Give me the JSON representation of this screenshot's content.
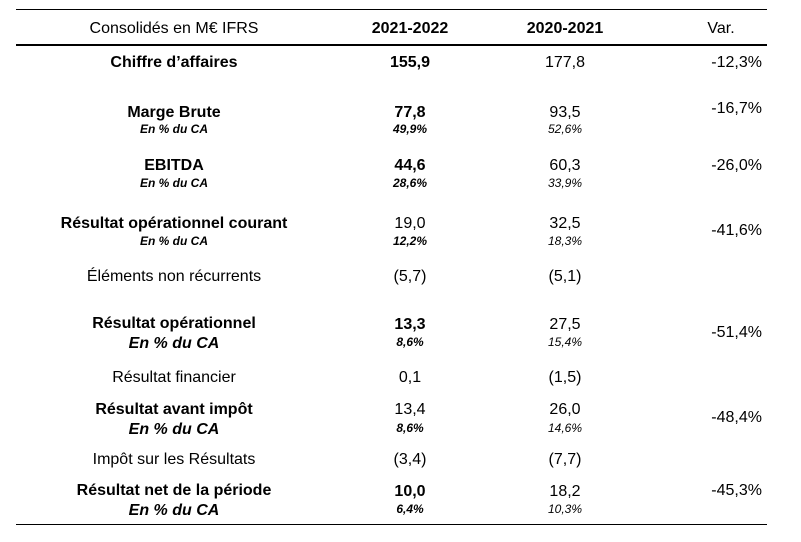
{
  "header": {
    "label": "Consolidés en M€ IFRS",
    "col1": "2021-2022",
    "col2": "2020-2021",
    "var": "Var."
  },
  "rows": [
    {
      "label": "Chiffre d’affaires",
      "col1": "155,9",
      "col2": "177,8",
      "var": "-12,3%"
    },
    {
      "label": "Marge Brute",
      "sublabel": "En % du CA",
      "col1": "77,8",
      "col1_sub": "49,9%",
      "col2": "93,5",
      "col2_sub": "52,6%",
      "var": "-16,7%"
    },
    {
      "label": "EBITDA",
      "sublabel": "En % du CA",
      "col1": "44,6",
      "col1_sub": "28,6%",
      "col2": "60,3",
      "col2_sub": "33,9%",
      "var": "-26,0%"
    },
    {
      "label": "Résultat opérationnel courant",
      "sublabel": "En % du CA",
      "col1": "19,0",
      "col1_sub": "12,2%",
      "col2": "32,5",
      "col2_sub": "18,3%",
      "var": "-41,6%"
    },
    {
      "label": "Éléments non récurrents",
      "col1": "(5,7)",
      "col2": "(5,1)"
    },
    {
      "label": "Résultat opérationnel",
      "sublabel": "En % du CA",
      "col1": "13,3",
      "col1_sub": "8,6%",
      "col2": "27,5",
      "col2_sub": "15,4%",
      "var": "-51,4%"
    },
    {
      "label": "Résultat financier",
      "col1": "0,1",
      "col2": "(1,5)"
    },
    {
      "label": "Résultat avant impôt",
      "sublabel": "En % du CA",
      "col1": "13,4",
      "col1_sub": "8,6%",
      "col2": "26,0",
      "col2_sub": "14,6%",
      "var": "-48,4%"
    },
    {
      "label": "Impôt sur les Résultats",
      "col1": "(3,4)",
      "col2": "(7,7)"
    },
    {
      "label": "Résultat net de la période",
      "sublabel": "En % du CA",
      "col1": "10,0",
      "col1_sub": "6,4%",
      "col2": "18,2",
      "col2_sub": "10,3%",
      "var": "-45,3%"
    }
  ]
}
